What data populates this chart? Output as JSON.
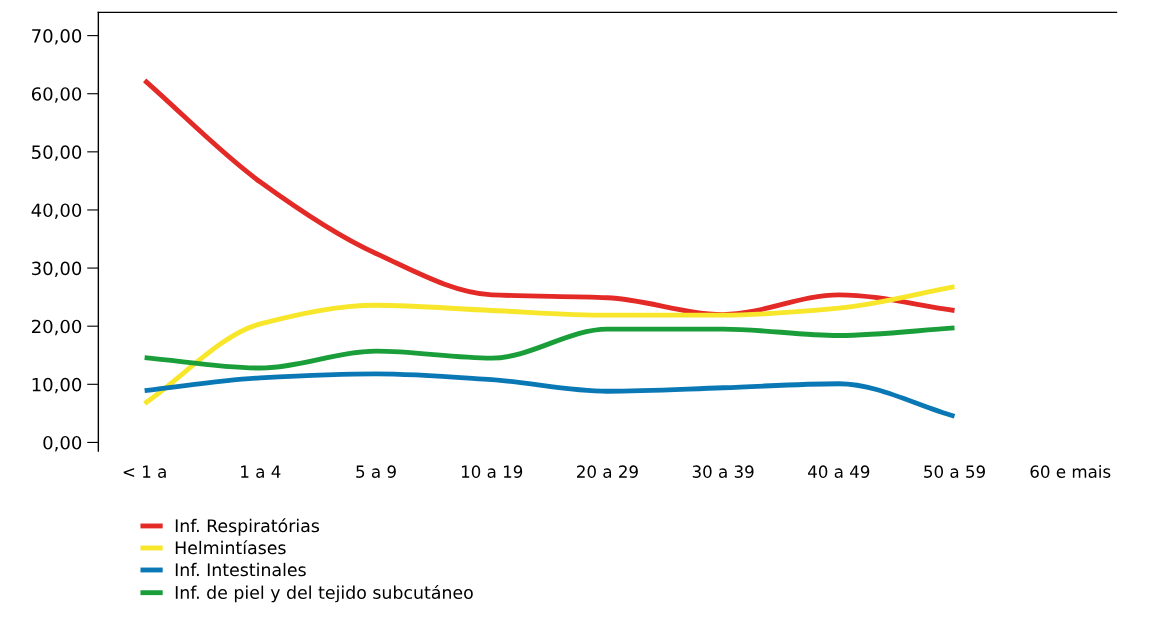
{
  "chart_data": {
    "type": "line",
    "categories": [
      "< 1 a",
      "1 a 4",
      "5 a 9",
      "10 a 19",
      "20 a 29",
      "30 a 39",
      "40 a 49",
      "50 a 59",
      "60 e mais"
    ],
    "series": [
      {
        "name": "Inf. Respiratórias",
        "color": "#e32a26",
        "values": [
          62.3,
          44.8,
          32.5,
          25.4,
          24.9,
          22.0,
          25.4,
          22.7,
          null
        ]
      },
      {
        "name": "Helmintíases",
        "color": "#f7e62a",
        "values": [
          6.7,
          20.4,
          23.6,
          22.7,
          21.9,
          21.9,
          23.1,
          26.8,
          null
        ]
      },
      {
        "name": "Inf. Intestinales",
        "color": "#0a78b4",
        "values": [
          8.9,
          11.1,
          11.8,
          10.8,
          8.8,
          9.4,
          10.1,
          4.5,
          null
        ]
      },
      {
        "name": "Inf. de piel y del tejido subcutáneo",
        "color": "#1a9e3a",
        "values": [
          14.6,
          12.8,
          15.7,
          14.5,
          19.5,
          19.5,
          18.4,
          19.7,
          null
        ]
      }
    ],
    "ylim": [
      -1.5,
      74
    ],
    "yticks": [
      {
        "value": 0,
        "label": "0,00"
      },
      {
        "value": 10,
        "label": "10,00"
      },
      {
        "value": 20,
        "label": "20,00"
      },
      {
        "value": 30,
        "label": "30,00"
      },
      {
        "value": 40,
        "label": "40,00"
      },
      {
        "value": 50,
        "label": "50,00"
      },
      {
        "value": 60,
        "label": "60,00"
      },
      {
        "value": 70,
        "label": "70,00"
      }
    ],
    "grid": false,
    "legend": "bottom left",
    "marker": "none",
    "line_style": "solid"
  }
}
